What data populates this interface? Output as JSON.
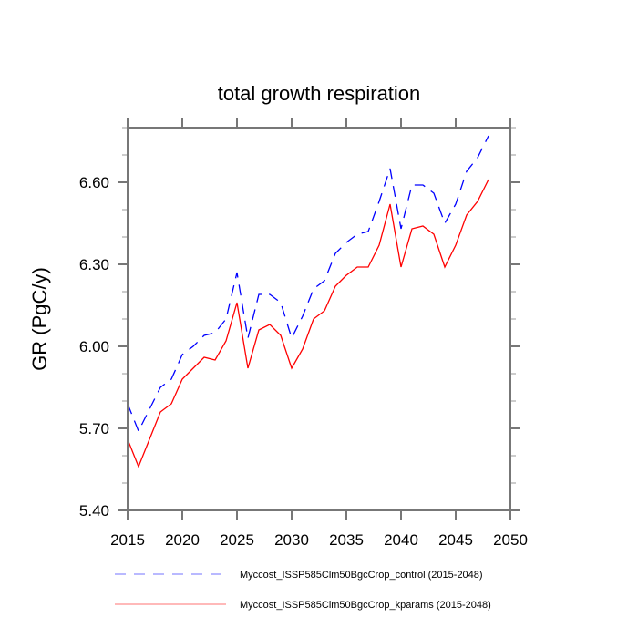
{
  "chart_data": {
    "type": "line",
    "title": "total growth respiration",
    "xlabel": "",
    "ylabel": "GR  (PgC/y)",
    "xlim": [
      2015,
      2050
    ],
    "ylim": [
      5.4,
      6.8
    ],
    "xticks": [
      2015,
      2020,
      2025,
      2030,
      2035,
      2040,
      2045,
      2050
    ],
    "xtick_labels": [
      "2015",
      "2020",
      "2025",
      "2030",
      "2035",
      "2040",
      "2045",
      "2050"
    ],
    "yticks": [
      5.4,
      5.7,
      6.0,
      6.3,
      6.6
    ],
    "ytick_labels": [
      "5.40",
      "5.70",
      "6.00",
      "6.30",
      "6.60"
    ],
    "yminor_step": 0.1,
    "grid": false,
    "legend_position": "bottom",
    "x": [
      2015,
      2016,
      2017,
      2018,
      2019,
      2020,
      2021,
      2022,
      2023,
      2024,
      2025,
      2026,
      2027,
      2028,
      2029,
      2030,
      2031,
      2032,
      2033,
      2034,
      2035,
      2036,
      2037,
      2038,
      2039,
      2040,
      2041,
      2042,
      2043,
      2044,
      2045,
      2046,
      2047,
      2048
    ],
    "series": [
      {
        "name": "Myccost_ISSP585Clm50BgcCrop_control (2015-2048)",
        "color": "#0000ff",
        "style": "dashed",
        "values": [
          5.79,
          5.69,
          5.77,
          5.85,
          5.88,
          5.97,
          6.0,
          6.04,
          6.05,
          6.1,
          6.27,
          6.03,
          6.19,
          6.19,
          6.16,
          6.03,
          6.11,
          6.21,
          6.24,
          6.34,
          6.38,
          6.41,
          6.42,
          6.53,
          6.65,
          6.43,
          6.59,
          6.59,
          6.56,
          6.45,
          6.52,
          6.64,
          6.69,
          6.77
        ]
      },
      {
        "name": "Myccost_ISSP585Clm50BgcCrop_kparams (2015-2048)",
        "color": "#ff0000",
        "style": "solid",
        "values": [
          5.66,
          5.56,
          5.66,
          5.76,
          5.79,
          5.88,
          5.92,
          5.96,
          5.95,
          6.02,
          6.16,
          5.92,
          6.06,
          6.08,
          6.04,
          5.92,
          5.99,
          6.1,
          6.13,
          6.22,
          6.26,
          6.29,
          6.29,
          6.37,
          6.52,
          6.29,
          6.43,
          6.44,
          6.41,
          6.29,
          6.37,
          6.48,
          6.53,
          6.61
        ]
      }
    ]
  }
}
